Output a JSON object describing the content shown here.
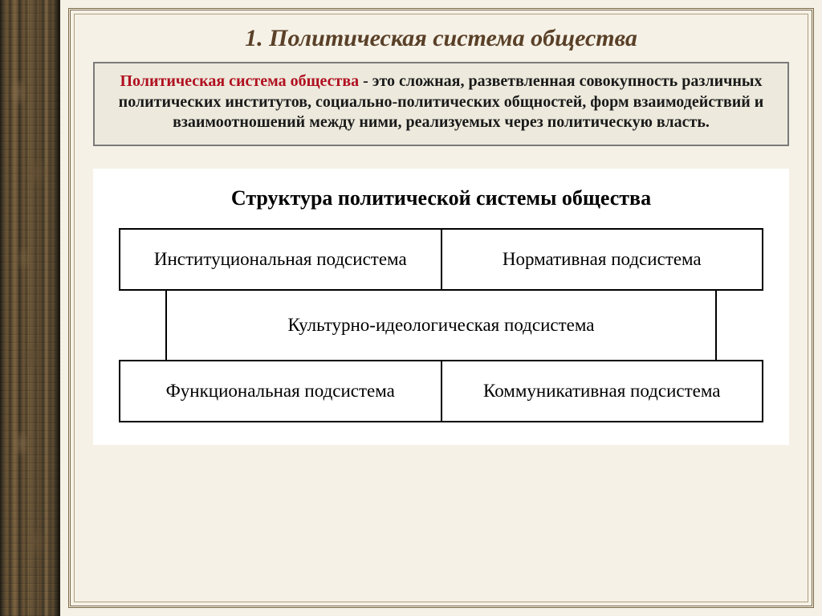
{
  "slide": {
    "title": "1. Политическая система общества",
    "title_color": "#5a4028",
    "title_fontsize": 30
  },
  "definition": {
    "term": "Политическая система общества",
    "term_color": "#b01020",
    "body": " - это сложная, разветвленная совокупность различных политических институтов, социально-политических общностей, форм взаимодействий и взаимоотношений между ними, реализуемых через политическую власть.",
    "box_border": "#7a7a7a",
    "box_bg": "#edeadd",
    "text_color": "#1a1a1a",
    "fontsize": 20
  },
  "structure": {
    "type": "infographic",
    "title": "Структура политической системы общества",
    "title_fontsize": 26,
    "background_color": "#ffffff",
    "cell_border": "#000000",
    "cell_fontsize": 23,
    "cells": {
      "top_left": "Институциональная подсистема",
      "top_right": "Нормативная подсистема",
      "middle": "Культурно-идеологическая подсистема",
      "bottom_left": "Функциональная подсистема",
      "bottom_right": "Коммуникативная подсистема"
    },
    "layout": "two-over-one-over-two"
  },
  "theme": {
    "page_bg": "#f5f1e6",
    "frame_border": "#7a6a4a",
    "sidebar_palette": [
      "#2a2418",
      "#3d3526",
      "#5a4830",
      "#6b5538",
      "#7a6442",
      "#8a7050"
    ]
  }
}
